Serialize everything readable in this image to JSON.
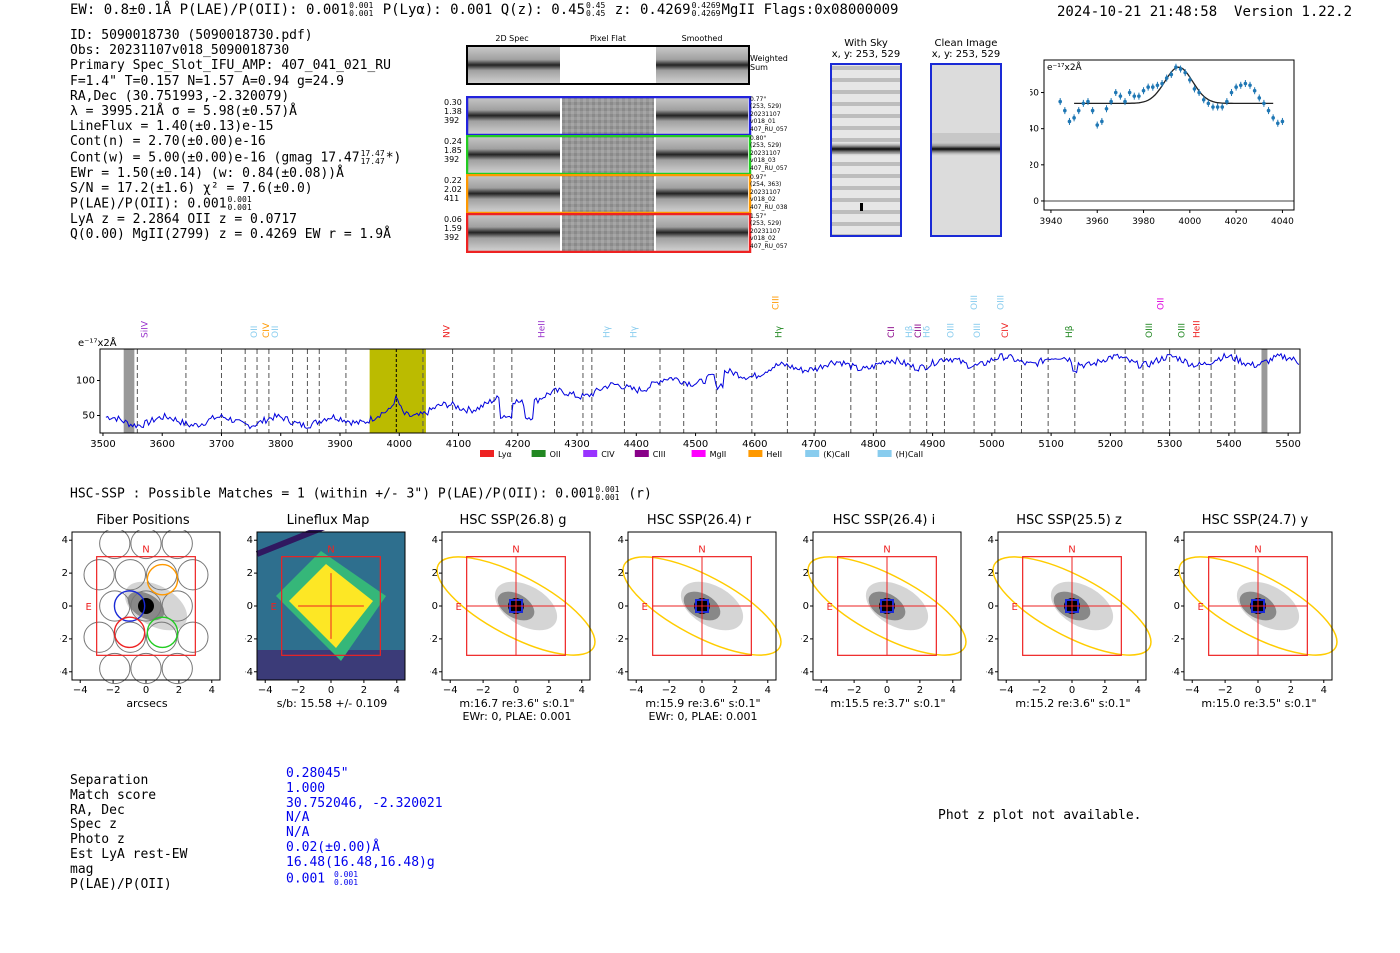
{
  "header": {
    "ew": "EW: 0.8±0.1Å",
    "plae_label": "P(LAE)/P(OII): 0.001",
    "plae_hi": "0.001",
    "plae_lo": "0.001",
    "plya": "P(Lyα): 0.001",
    "qz_label": "Q(z): 0.45",
    "qz_hi": "0.45",
    "qz_lo": "0.45",
    "z_label": "z: 0.4269",
    "z_hi": "0.4269",
    "z_lo": "0.4269",
    "z_tail": "MgII  Flags:0x08000009",
    "timestamp": "2024-10-21 21:48:58",
    "version": "Version 1.22.2"
  },
  "info": {
    "id": "ID: 5090018730 (5090018730.pdf)",
    "obs": "Obs: 20231107v018_5090018730",
    "primary": "Primary Spec_Slot_IFU_AMP: 407_041_021_RU",
    "f_line": "F=1.4\"  T=0.157  N=1.57  A=0.94  g=24.9",
    "radec": "RA,Dec (30.751993,-2.320079)",
    "lambda": "λ = 3995.21Å  σ = 5.98(±0.57)Å",
    "lineflux": "LineFlux = 1.40(±0.13)e-15",
    "contn": "Cont(n) = 2.70(±0.00)e-16",
    "contw": "Cont(w) = 5.00(±0.00)e-16 (gmag 17.47",
    "contw_hi": "17.47",
    "contw_lo": "17.47",
    "contw_tail": "*)",
    "ewr": "EWr = 1.50(±0.14) (w: 0.84(±0.08))Å",
    "sn": "S/N = 17.2(±1.6)  χ² = 7.6(±0.0)",
    "plae": "P(LAE)/P(OII): 0.001",
    "plae_hi": "0.001",
    "plae_lo": "0.001",
    "lya": "LyA z = 2.2864  OII z = 0.0717",
    "q": "Q(0.00) MgII(2799) z = 0.4269  EW r = 1.9Å"
  },
  "cutouts": {
    "col_titles": [
      "2D Spec",
      "Pixel Flat",
      "Smoothed"
    ],
    "weighted_label": "Weighted Sum",
    "rows": [
      {
        "nums": [
          "0.30",
          "1.38",
          "392"
        ],
        "side": [
          "0.77\"",
          "(253, 529)",
          "20231107",
          "v018_01",
          "407_RU_057"
        ],
        "color": "#2222dd"
      },
      {
        "nums": [
          "0.24",
          "1.85",
          "392"
        ],
        "side": [
          "0.80\"",
          "(253, 529)",
          "20231107",
          "v018_03",
          "407_RU_057"
        ],
        "color": "#22cc22"
      },
      {
        "nums": [
          "0.22",
          "2.02",
          "411"
        ],
        "side": [
          "0.97\"",
          "(254, 363)",
          "20231107",
          "v018_02",
          "407_RU_038"
        ],
        "color": "#ff9900"
      },
      {
        "nums": [
          "0.06",
          "1.59",
          "392"
        ],
        "side": [
          "1.57\"",
          "(253, 529)",
          "20231107",
          "v018_02",
          "407_RU_057"
        ],
        "color": "#ee2222"
      }
    ]
  },
  "sky": {
    "with_title": "With Sky",
    "with_sub": "x, y: 253, 529",
    "clean_title": "Clean Image",
    "clean_sub": "x, y: 253, 529"
  },
  "zoom_chart": {
    "unit_label": "e⁻¹⁷x2Å",
    "x_ticks": [
      "3940",
      "3960",
      "3980",
      "4000",
      "4020",
      "4040"
    ],
    "y_ticks": [
      "0",
      "20",
      "40",
      "60"
    ],
    "xlim": [
      3937,
      4045
    ],
    "ylim": [
      -5,
      78
    ],
    "points": [
      [
        3944,
        55
      ],
      [
        3946,
        50
      ],
      [
        3948,
        44
      ],
      [
        3950,
        46
      ],
      [
        3952,
        50
      ],
      [
        3954,
        54
      ],
      [
        3956,
        55
      ],
      [
        3958,
        50
      ],
      [
        3960,
        42
      ],
      [
        3962,
        44
      ],
      [
        3964,
        51
      ],
      [
        3966,
        55
      ],
      [
        3968,
        60
      ],
      [
        3970,
        58
      ],
      [
        3972,
        55
      ],
      [
        3974,
        60
      ],
      [
        3976,
        58
      ],
      [
        3978,
        58
      ],
      [
        3980,
        61
      ],
      [
        3982,
        63
      ],
      [
        3984,
        63
      ],
      [
        3986,
        64
      ],
      [
        3988,
        65
      ],
      [
        3990,
        68
      ],
      [
        3992,
        70
      ],
      [
        3994,
        74
      ],
      [
        3996,
        73
      ],
      [
        3998,
        71
      ],
      [
        4000,
        67
      ],
      [
        4002,
        62
      ],
      [
        4004,
        60
      ],
      [
        4006,
        56
      ],
      [
        4008,
        54
      ],
      [
        4010,
        52
      ],
      [
        4012,
        52
      ],
      [
        4014,
        52
      ],
      [
        4016,
        55
      ],
      [
        4018,
        60
      ],
      [
        4020,
        63
      ],
      [
        4022,
        64
      ],
      [
        4024,
        65
      ],
      [
        4026,
        64
      ],
      [
        4028,
        61
      ],
      [
        4030,
        57
      ],
      [
        4032,
        54
      ],
      [
        4034,
        50
      ],
      [
        4036,
        46
      ],
      [
        4038,
        43
      ],
      [
        4040,
        44
      ]
    ]
  },
  "spectrum": {
    "unit_label": "e⁻¹⁷x2Å",
    "x_ticks": [
      "3500",
      "3600",
      "3700",
      "3800",
      "3900",
      "4000",
      "4100",
      "4200",
      "4300",
      "4400",
      "4500",
      "4600",
      "4700",
      "4800",
      "4900",
      "5000",
      "5100",
      "5200",
      "5300",
      "5400",
      "5500"
    ],
    "y_ticks": [
      "50",
      "100"
    ],
    "xlim": [
      3495,
      5520
    ],
    "ylim": [
      25,
      145
    ],
    "highlight": [
      3950,
      4045
    ],
    "obs_line": 3995,
    "dashed": [
      3558,
      3640,
      3700,
      3740,
      3760,
      3780,
      3820,
      3845,
      3865,
      3910,
      4040,
      4090,
      4160,
      4190,
      4262,
      4310,
      4325,
      4380,
      4440,
      4480,
      4535,
      4595,
      4655,
      4702,
      4762,
      4805,
      4862,
      4890,
      4920,
      4970,
      5005,
      5050,
      5095,
      5140,
      5225,
      5255,
      5300,
      5350,
      5370,
      5410
    ],
    "line_labels": [
      {
        "x": 3570,
        "text": "SiIV",
        "color": "#9933cc",
        "row": 2
      },
      {
        "x": 3755,
        "text": "OII",
        "color": "#88ccee",
        "row": 2
      },
      {
        "x": 3775,
        "text": "CIV",
        "color": "#ff9900",
        "row": 2
      },
      {
        "x": 3790,
        "text": "OII",
        "color": "#88ccee",
        "row": 2
      },
      {
        "x": 4080,
        "text": "NV",
        "color": "#ee2222",
        "row": 2
      },
      {
        "x": 4240,
        "text": "HeII",
        "color": "#9933cc",
        "row": 2
      },
      {
        "x": 4350,
        "text": "Hγ",
        "color": "#88ccee",
        "row": 2
      },
      {
        "x": 4395,
        "text": "Hγ",
        "color": "#88ccee",
        "row": 2
      },
      {
        "x": 4635,
        "text": "CIII",
        "color": "#ff9900",
        "row": 0
      },
      {
        "x": 4640,
        "text": "Hγ",
        "color": "#228822",
        "row": 2
      },
      {
        "x": 4830,
        "text": "CII",
        "color": "#880088",
        "row": 2
      },
      {
        "x": 4860,
        "text": "Hβ",
        "color": "#88ccee",
        "row": 2
      },
      {
        "x": 4875,
        "text": "CIII",
        "color": "#880088",
        "row": 2
      },
      {
        "x": 4890,
        "text": "Hδ",
        "color": "#88ccee",
        "row": 2
      },
      {
        "x": 4930,
        "text": "OIII",
        "color": "#88ccee",
        "row": 2
      },
      {
        "x": 4970,
        "text": "OIII",
        "color": "#88ccee",
        "row": 0
      },
      {
        "x": 4975,
        "text": "OIII",
        "color": "#88ccee",
        "row": 2
      },
      {
        "x": 5015,
        "text": "OIII",
        "color": "#88ccee",
        "row": 0
      },
      {
        "x": 5022,
        "text": "CIV",
        "color": "#ee2222",
        "row": 2
      },
      {
        "x": 5130,
        "text": "Hβ",
        "color": "#228822",
        "row": 2
      },
      {
        "x": 5265,
        "text": "OIII",
        "color": "#228822",
        "row": 2
      },
      {
        "x": 5285,
        "text": "OII",
        "color": "#dd00dd",
        "row": 0
      },
      {
        "x": 5320,
        "text": "OIII",
        "color": "#228822",
        "row": 2
      },
      {
        "x": 5345,
        "text": "HeII",
        "color": "#ee2222",
        "row": 2
      }
    ],
    "legend": [
      {
        "label": "Lyα",
        "color": "#ee2222"
      },
      {
        "label": "OII",
        "color": "#228822"
      },
      {
        "label": "CIV",
        "color": "#9933ff"
      },
      {
        "label": "CIII",
        "color": "#880088"
      },
      {
        "label": "MgII",
        "color": "#ff00ff"
      },
      {
        "label": "HeII",
        "color": "#ff9900"
      },
      {
        "label": "(K)CaII",
        "color": "#88ccee"
      },
      {
        "label": "(H)CaII",
        "color": "#88ccee"
      }
    ]
  },
  "hsc": {
    "line_label": "HSC-SSP : Possible Matches = 1 (within +/- 3\")  P(LAE)/P(OII): 0.001",
    "line_hi": "0.001",
    "line_lo": "0.001",
    "line_tail": "(r)",
    "panels": [
      {
        "title": "Fiber Positions",
        "xlabel": "arcsecs",
        "sub2": "",
        "type": "fiber"
      },
      {
        "title": "Lineflux Map",
        "xlabel": "s/b: 15.58 +/- 0.109",
        "sub2": "",
        "type": "flux"
      },
      {
        "title": "HSC SSP(26.8) g",
        "xlabel": "m:16.7  re:3.6\"  s:0.1\"",
        "sub2": "EWr: 0, PLAE: 0.001",
        "type": "hsc"
      },
      {
        "title": "HSC SSP(26.4) r",
        "xlabel": "m:15.9  re:3.6\"  s:0.1\"",
        "sub2": "EWr: 0, PLAE: 0.001",
        "type": "hsc"
      },
      {
        "title": "HSC SSP(26.4) i",
        "xlabel": "m:15.5  re:3.7\"  s:0.1\"",
        "sub2": "",
        "type": "hsc"
      },
      {
        "title": "HSC SSP(25.5) z",
        "xlabel": "m:15.2  re:3.6\"  s:0.1\"",
        "sub2": "",
        "type": "hsc"
      },
      {
        "title": "HSC SSP(24.7) y",
        "xlabel": "m:15.0  re:3.5\"  s:0.1\"",
        "sub2": "",
        "type": "hsc"
      }
    ],
    "ticks": [
      "−4",
      "−2",
      "0",
      "2",
      "4"
    ],
    "n_label": "N",
    "e_label": "E"
  },
  "match_table": {
    "rows": [
      {
        "label": "Separation",
        "value": "0.28045\""
      },
      {
        "label": "Match score",
        "value": "1.000"
      },
      {
        "label": "RA, Dec",
        "value": "30.752046, -2.320021"
      },
      {
        "label": "Spec z",
        "value": "N/A"
      },
      {
        "label": "Photo z",
        "value": "N/A"
      },
      {
        "label": "Est LyA rest-EW",
        "value": "0.02(±0.00)Å"
      },
      {
        "label": "mag",
        "value": "16.48(16.48,16.48)g"
      },
      {
        "label": "P(LAE)/P(OII)",
        "value": "0.001"
      }
    ],
    "plae_hi": "0.001",
    "plae_lo": "0.001"
  },
  "photz_msg": "Phot z plot not available.",
  "colors": {
    "spectrum": "#0000dd",
    "highlight": "#bbbb00",
    "zoom_points": "#1f77b4",
    "ellipse": "#ffcc00",
    "box": "#ee2222"
  }
}
